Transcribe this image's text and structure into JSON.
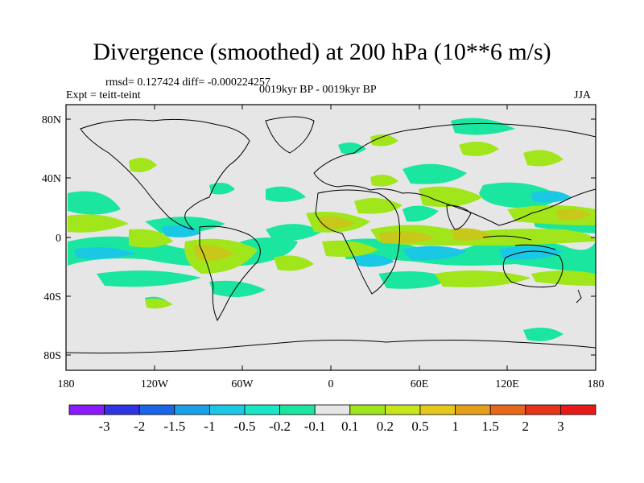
{
  "title": "Divergence (smoothed) at 200 hPa (10**6 m/s)",
  "stats_line": "rmsd= 0.127424 diff= -0.000224257",
  "experiment": "Expt = teitt-teint",
  "period": "0019kyr BP - 0019kyr BP",
  "season": "JJA",
  "lat_labels": [
    "80N",
    "40N",
    "0",
    "40S",
    "80S"
  ],
  "lon_labels": [
    "180",
    "120W",
    "60W",
    "0",
    "60E",
    "120E",
    "180"
  ],
  "colorbar": {
    "labels": [
      "-3",
      "-2",
      "-1.5",
      "-1",
      "-0.5",
      "-0.2",
      "-0.1",
      "0.1",
      "0.2",
      "0.5",
      "1",
      "1.5",
      "2",
      "3"
    ],
    "colors": [
      "#8c1aff",
      "#3333e6",
      "#1a66e6",
      "#1aa0e6",
      "#1ac8e6",
      "#1ae6c8",
      "#1ae6a0",
      "#e6e6e6",
      "#a0e61a",
      "#c8e61a",
      "#e6c81a",
      "#e6a01a",
      "#e6661a",
      "#e6331a",
      "#e61a1a"
    ]
  },
  "field_colors": {
    "background": "#e6e6e6",
    "neg_weak": "#1ae6a0",
    "neg_mid": "#1ac8e6",
    "pos_weak": "#a0e61a",
    "pos_mid": "#c8c81a"
  }
}
